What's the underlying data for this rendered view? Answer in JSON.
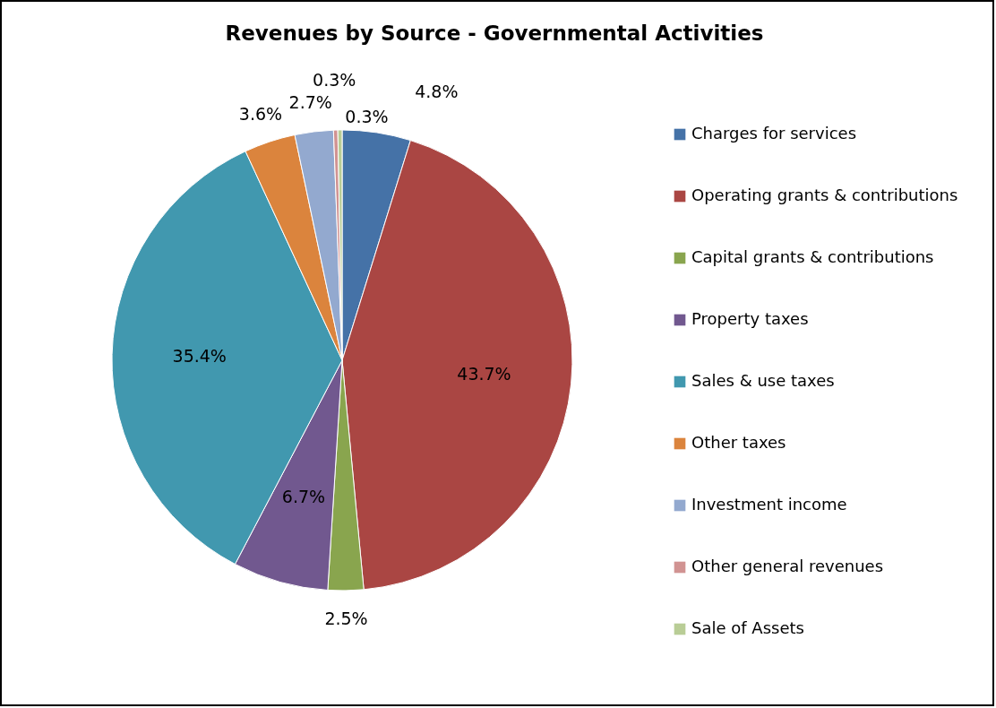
{
  "chart_data": {
    "type": "pie",
    "title": "Revenues by Source - Governmental Activities",
    "categories": [
      "Charges for services",
      "Operating grants & contributions",
      "Capital grants & contributions",
      "Property taxes",
      "Sales & use taxes",
      "Other taxes",
      "Investment income",
      "Other general revenues",
      "Sale of Assets"
    ],
    "values": [
      4.8,
      43.7,
      2.5,
      6.7,
      35.4,
      3.6,
      2.7,
      0.3,
      0.3
    ],
    "colors": [
      "#4572a7",
      "#aa4643",
      "#89a54e",
      "#71588f",
      "#4198af",
      "#db843d",
      "#93a9cf",
      "#d19392",
      "#b9cd96"
    ],
    "value_labels": [
      "4.8%",
      "43.7%",
      "2.5%",
      "6.7%",
      "35.4%",
      "3.6%",
      "2.7%",
      "0.3%",
      "0.3%"
    ],
    "legend": "right"
  }
}
